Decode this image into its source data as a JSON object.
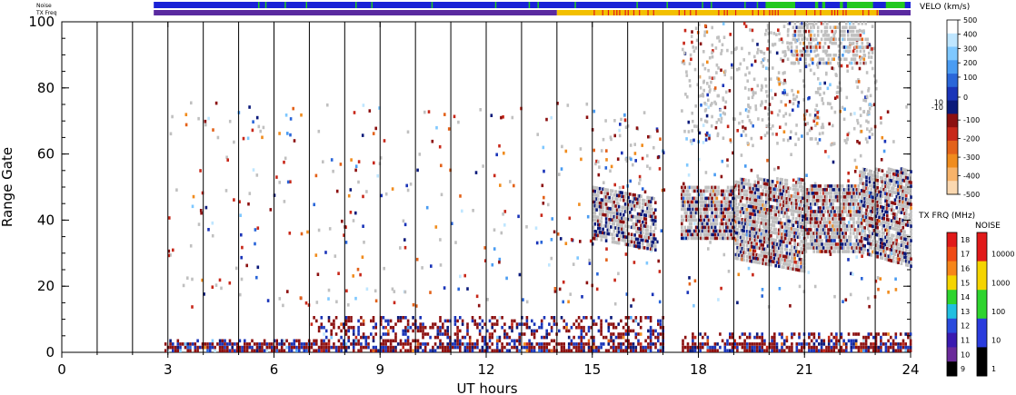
{
  "chart_data": {
    "type": "heatmap",
    "xlabel": "UT hours",
    "ylabel": "Range Gate",
    "xlim": [
      0,
      24
    ],
    "ylim": [
      0,
      100
    ],
    "x_ticks": [
      "0",
      "3",
      "6",
      "9",
      "12",
      "15",
      "18",
      "21",
      "24"
    ],
    "y_ticks": [
      "0",
      "20",
      "40",
      "60",
      "80",
      "100"
    ],
    "top_strips": [
      {
        "name": "Noise",
        "dominant_color": "#1a22d6",
        "secondary_color": "#22c81f",
        "span_hours": [
          2.6,
          24
        ]
      },
      {
        "name": "TX Freq",
        "segments": [
          {
            "from": 2.6,
            "to": 14.0,
            "color": "#5a2aa0"
          },
          {
            "from": 14.0,
            "to": 23.1,
            "color": "#f3c000"
          },
          {
            "from": 23.1,
            "to": 24,
            "color": "#5a2aa0"
          }
        ]
      }
    ],
    "scan_boundaries_hours": [
      1,
      2,
      3,
      4,
      5,
      6,
      7,
      8,
      9,
      10,
      11,
      12,
      13,
      14,
      15,
      16,
      17,
      18,
      19,
      20,
      21,
      22,
      23
    ],
    "gap_hours": [
      [
        0,
        2.9
      ],
      [
        17.0,
        17.5
      ]
    ],
    "velocity_colorbar": {
      "title": "VELO (km/s)",
      "labels": [
        "500",
        "400",
        "300",
        "200",
        "100",
        "0",
        "10",
        "-10",
        "-100",
        "-200",
        "-300",
        "-400",
        "-500"
      ],
      "colors": [
        "#ffffff",
        "#bfe6ff",
        "#7fc8ff",
        "#4a9cf2",
        "#2a66d9",
        "#1a34b8",
        "#0b1a7a",
        "#8c1010",
        "#c8281a",
        "#e3621a",
        "#f08c1e",
        "#f7b36a",
        "#fbd8b0"
      ]
    },
    "txfreq_colorbar": {
      "title": "TX FRQ (MHz)",
      "labels": [
        "18",
        "17",
        "16",
        "15",
        "14",
        "13",
        "12",
        "11",
        "10",
        "9"
      ],
      "colors": [
        "#e11919",
        "#f04a14",
        "#f7861a",
        "#f5d400",
        "#2ed42e",
        "#21bfe0",
        "#2a4bdd",
        "#3a1ab0",
        "#6a2a9a",
        "#000000"
      ]
    },
    "noise_colorbar": {
      "title": "NOISE",
      "labels": [
        "10000",
        "1000",
        "100",
        "10",
        "1"
      ],
      "colors": [
        "#e11919",
        "#f5d400",
        "#2ed42e",
        "#2a3cdd",
        "#000000"
      ]
    },
    "groundscatter_color": "#c0c0c0",
    "features": [
      {
        "name": "near-range scatter",
        "hours": [
          2.9,
          24
        ],
        "gates": [
          0,
          12
        ]
      },
      {
        "name": "groundscatter band",
        "hours": [
          15.0,
          16.8
        ],
        "gates": [
          33,
          50
        ]
      },
      {
        "name": "groundscatter band",
        "hours": [
          17.5,
          24
        ],
        "gates": [
          23,
          55
        ]
      },
      {
        "name": "far-range scatter",
        "hours": [
          17.5,
          23
        ],
        "gates": [
          62,
          100
        ]
      }
    ]
  }
}
